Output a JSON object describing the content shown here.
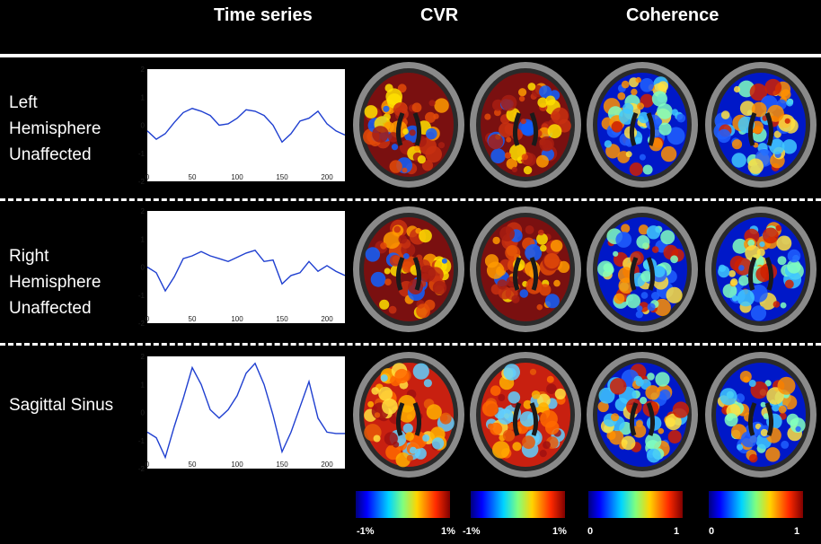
{
  "headers": {
    "time_series": "Time series",
    "cvr": "CVR",
    "coherence": "Coherence"
  },
  "rows": [
    {
      "label_lines": [
        "Left",
        "Hemisphere",
        "Unaffected"
      ]
    },
    {
      "label_lines": [
        "Right",
        "Hemisphere",
        "Unaffected"
      ]
    },
    {
      "label_lines": [
        "Sagittal Sinus"
      ]
    }
  ],
  "plot_axes": {
    "y_ticks": [
      "2",
      "1",
      "0",
      "-1",
      "-2"
    ],
    "x_ticks": [
      "0",
      "50",
      "100",
      "150",
      "200"
    ],
    "ylim": [
      -2,
      2
    ],
    "xlim": [
      0,
      220
    ]
  },
  "chart_data": [
    {
      "type": "line",
      "title": "",
      "xlabel": "",
      "ylabel": "",
      "ylim": [
        -2,
        2
      ],
      "xlim": [
        0,
        220
      ],
      "x": [
        0,
        10,
        20,
        30,
        40,
        50,
        60,
        70,
        80,
        90,
        100,
        110,
        120,
        130,
        140,
        150,
        160,
        170,
        180,
        190,
        200,
        210,
        220
      ],
      "y": [
        -0.2,
        -0.5,
        -0.3,
        0.1,
        0.45,
        0.6,
        0.5,
        0.35,
        0.0,
        0.05,
        0.25,
        0.55,
        0.5,
        0.35,
        0.0,
        -0.6,
        -0.3,
        0.15,
        0.25,
        0.5,
        0.05,
        -0.2,
        -0.35
      ],
      "color": "#1f3fd0"
    },
    {
      "type": "line",
      "title": "",
      "xlabel": "",
      "ylabel": "",
      "ylim": [
        -2,
        2
      ],
      "xlim": [
        0,
        220
      ],
      "x": [
        0,
        10,
        20,
        30,
        40,
        50,
        60,
        70,
        80,
        90,
        100,
        110,
        120,
        130,
        140,
        150,
        160,
        170,
        180,
        190,
        200,
        210,
        220
      ],
      "y": [
        0.0,
        -0.2,
        -0.85,
        -0.35,
        0.3,
        0.4,
        0.55,
        0.4,
        0.3,
        0.2,
        0.35,
        0.5,
        0.6,
        0.2,
        0.25,
        -0.6,
        -0.3,
        -0.2,
        0.2,
        -0.15,
        0.05,
        -0.15,
        -0.3
      ],
      "color": "#1f3fd0"
    },
    {
      "type": "line",
      "title": "",
      "xlabel": "",
      "ylabel": "",
      "ylim": [
        -2,
        2
      ],
      "xlim": [
        0,
        220
      ],
      "x": [
        0,
        10,
        20,
        30,
        40,
        50,
        60,
        70,
        80,
        90,
        100,
        110,
        120,
        130,
        140,
        150,
        160,
        170,
        180,
        190,
        200,
        210,
        220
      ],
      "y": [
        -0.7,
        -0.9,
        -1.6,
        -0.5,
        0.5,
        1.6,
        1.0,
        0.1,
        -0.2,
        0.1,
        0.6,
        1.4,
        1.75,
        1.0,
        -0.1,
        -1.4,
        -0.7,
        0.2,
        1.1,
        -0.2,
        -0.7,
        -0.75,
        -0.75
      ],
      "color": "#1f3fd0"
    }
  ],
  "brain_maps": [
    [
      "cvr-hot",
      "cvr-hot",
      "coherence",
      "coherence"
    ],
    [
      "cvr-hot",
      "cvr-hot",
      "coherence",
      "coherence"
    ],
    [
      "cvr-warm",
      "cvr-warm",
      "coherence",
      "coherence"
    ]
  ],
  "colorbars": [
    {
      "min": "-1%",
      "max": "1%"
    },
    {
      "min": "-1%",
      "max": "1%"
    },
    {
      "min": "0",
      "max": "1"
    },
    {
      "min": "0",
      "max": "1"
    }
  ],
  "colors": {
    "background": "#000000",
    "line": "#1f3fd0",
    "text": "#ffffff"
  }
}
